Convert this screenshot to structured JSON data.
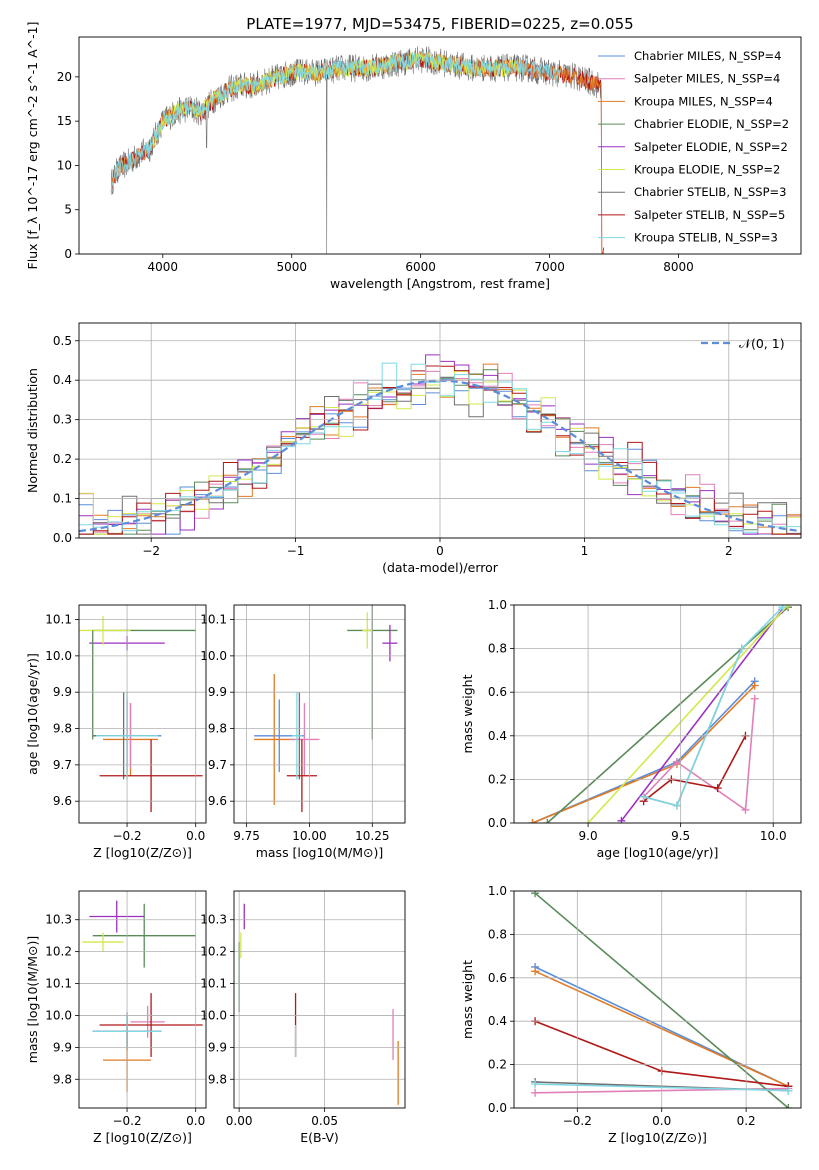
{
  "figure": {
    "title": "PLATE=1977, MJD=53475, FIBERID=0225, z=0.055"
  },
  "colors": {
    "Chabrier MILES": "#5b8ddb",
    "Salpeter MILES": "#e07fb8",
    "Kroupa MILES": "#e07b24",
    "Chabrier ELODIE": "#5a8a5a",
    "Salpeter ELODIE": "#9b30c0",
    "Kroupa ELODIE": "#d4e84a",
    "Chabrier STELIB": "#707070",
    "Salpeter STELIB": "#b01818",
    "Kroupa STELIB": "#7fd8e4",
    "normal": "#5b8ddb"
  },
  "chart_data": [
    {
      "id": "spectrum",
      "type": "line",
      "title": "PLATE=1977, MJD=53475, FIBERID=0225, z=0.055",
      "xlabel": "wavelength [Angstrom, rest frame]",
      "ylabel": "Flux [f_λ 10^-17 erg cm^-2 s^-1 A^-1]",
      "xlim": [
        3350,
        8950
      ],
      "ylim": [
        0,
        24.5
      ],
      "xticks": [
        4000,
        5000,
        6000,
        7000,
        8000
      ],
      "yticks": [
        0,
        5,
        10,
        15,
        20
      ],
      "grid": false,
      "legend_position": "top-right",
      "legend": [
        "Chabrier MILES, N_SSP=4",
        "Salpeter MILES, N_SSP=4",
        "Kroupa MILES, N_SSP=4",
        "Chabrier ELODIE, N_SSP=2",
        "Salpeter ELODIE, N_SSP=2",
        "Kroupa ELODIE, N_SSP=2",
        "Chabrier STELIB, N_SSP=3",
        "Salpeter STELIB, N_SSP=5",
        "Kroupa STELIB, N_SSP=3"
      ],
      "continuum": {
        "x": [
          3600,
          3650,
          3700,
          3800,
          3900,
          4000,
          4100,
          4200,
          4300,
          4400,
          4500,
          4600,
          4700,
          4800,
          4900,
          5000,
          5200,
          5400,
          5600,
          5800,
          6000,
          6200,
          6400,
          6600,
          6800,
          7000,
          7200,
          7400
        ],
        "y": [
          8,
          9.5,
          10,
          11,
          12,
          15,
          16,
          16.5,
          16,
          17.5,
          18.5,
          19,
          19,
          19.5,
          20,
          20.5,
          20.5,
          21,
          21,
          21.5,
          22,
          21.5,
          21,
          21,
          21,
          20.5,
          20,
          19
        ]
      }
    },
    {
      "id": "residuals",
      "type": "line",
      "xlabel": "(data-model)/error",
      "ylabel": "Normed distribution",
      "xlim": [
        -2.5,
        2.5
      ],
      "ylim": [
        0,
        0.545
      ],
      "xticks": [
        -2,
        -1,
        0,
        1,
        2
      ],
      "yticks": [
        0,
        0.1,
        0.2,
        0.3,
        0.4,
        0.5
      ],
      "grid": true,
      "legend_position": "top-right",
      "legend": [
        "N(0,1)"
      ],
      "histogram_bins": [
        -2.5,
        2.5,
        0.1
      ]
    },
    {
      "id": "age-vs-Z",
      "type": "scatter",
      "xlabel": "Z [log10(Z/Z⊙)]",
      "ylabel": "age [log10(age/yr)]",
      "xlim": [
        -0.34,
        0.03
      ],
      "ylim": [
        9.54,
        10.14
      ],
      "xticks": [
        -0.2,
        0.0
      ],
      "yticks": [
        9.6,
        9.7,
        9.8,
        9.9,
        10.0,
        10.1
      ],
      "grid": true,
      "points": [
        {
          "model": "Chabrier MILES",
          "x": -0.2,
          "y": 9.78,
          "xerr": 0.1,
          "yerr": 0.1
        },
        {
          "model": "Kroupa MILES",
          "x": -0.19,
          "y": 9.77,
          "xerr": 0.08,
          "yerr": 0.1
        },
        {
          "model": "Salpeter MILES",
          "x": -0.19,
          "y": 9.78,
          "xerr": 0.06,
          "yerr": 0.09
        },
        {
          "model": "Chabrier ELODIE",
          "x": -0.15,
          "y": 10.07,
          "xerr": 0.15,
          "yerr": 0.0
        },
        {
          "model": "Salpeter ELODIE",
          "x": -0.2,
          "y": 10.035,
          "xerr": 0.11,
          "yerr": 0.02
        },
        {
          "model": "Kroupa ELODIE",
          "x": -0.27,
          "y": 10.07,
          "xerr": 0.08,
          "yerr": 0.04
        },
        {
          "model": "Chabrier STELIB",
          "x": -0.21,
          "y": 9.78,
          "xerr": 0.09,
          "yerr": 0.12
        },
        {
          "model": "Salpeter STELIB",
          "x": -0.13,
          "y": 9.67,
          "xerr": 0.15,
          "yerr": 0.1
        },
        {
          "model": "Kroupa STELIB",
          "x": -0.2,
          "y": 9.78,
          "xerr": 0.09,
          "yerr": 0.12
        },
        {
          "model": "Chabrier ELODIE",
          "x": -0.3,
          "y": 9.92,
          "xerr": 0.0,
          "yerr": 0.15
        }
      ]
    },
    {
      "id": "age-vs-mass",
      "type": "scatter",
      "xlabel": "mass [log10(M/M⊙)]",
      "ylabel": "",
      "xlim": [
        9.7,
        10.38
      ],
      "ylim": [
        9.54,
        10.14
      ],
      "xticks": [
        9.75,
        10.0,
        10.25
      ],
      "yticks": [
        9.6,
        9.7,
        9.8,
        9.9,
        10.0,
        10.1
      ],
      "grid": true,
      "points": [
        {
          "model": "Chabrier MILES",
          "x": 9.88,
          "y": 9.78,
          "xerr": 0.1,
          "yerr": 0.1
        },
        {
          "model": "Kroupa MILES",
          "x": 9.86,
          "y": 9.77,
          "xerr": 0.08,
          "yerr": 0.18
        },
        {
          "model": "Salpeter MILES",
          "x": 9.98,
          "y": 9.77,
          "xerr": 0.06,
          "yerr": 0.1
        },
        {
          "model": "Chabrier ELODIE",
          "x": 10.25,
          "y": 10.07,
          "xerr": 0.1,
          "yerr": 0.3
        },
        {
          "model": "Salpeter ELODIE",
          "x": 10.32,
          "y": 10.035,
          "xerr": 0.03,
          "yerr": 0.05
        },
        {
          "model": "Kroupa ELODIE",
          "x": 10.23,
          "y": 10.07,
          "xerr": 0.02,
          "yerr": 0.05
        },
        {
          "model": "Chabrier STELIB",
          "x": 9.96,
          "y": 9.78,
          "xerr": 0.01,
          "yerr": 0.12
        },
        {
          "model": "Salpeter STELIB",
          "x": 9.97,
          "y": 9.67,
          "xerr": 0.06,
          "yerr": 0.1
        },
        {
          "model": "Kroupa STELIB",
          "x": 9.95,
          "y": 9.78,
          "xerr": 0.02,
          "yerr": 0.12
        }
      ]
    },
    {
      "id": "mass-weight-vs-age",
      "type": "line",
      "xlabel": "age [log10(age/yr)]",
      "ylabel": "mass weight",
      "xlim": [
        8.6,
        10.15
      ],
      "ylim": [
        0,
        1.0
      ],
      "xticks": [
        9.0,
        9.5,
        10.0
      ],
      "yticks": [
        0,
        0.2,
        0.4,
        0.6,
        0.8,
        1.0
      ],
      "grid": true,
      "series": [
        {
          "model": "Chabrier MILES",
          "x": [
            8.7,
            9.48,
            9.9
          ],
          "y": [
            0.0,
            0.28,
            0.65
          ]
        },
        {
          "model": "Kroupa MILES",
          "x": [
            8.7,
            9.48,
            9.9
          ],
          "y": [
            0.0,
            0.27,
            0.63
          ]
        },
        {
          "model": "Salpeter MILES",
          "x": [
            9.3,
            9.48,
            9.85,
            9.9
          ],
          "y": [
            0.12,
            0.28,
            0.06,
            0.57
          ]
        },
        {
          "model": "Chabrier ELODIE",
          "x": [
            8.78,
            10.08
          ],
          "y": [
            0.0,
            0.99
          ]
        },
        {
          "model": "Salpeter ELODIE",
          "x": [
            9.18,
            10.05
          ],
          "y": [
            0.01,
            0.98
          ]
        },
        {
          "model": "Kroupa ELODIE",
          "x": [
            9.0,
            10.08
          ],
          "y": [
            0.0,
            1.0
          ]
        },
        {
          "model": "Chabrier STELIB",
          "x": [
            9.3,
            9.48,
            9.83
          ],
          "y": [
            0.12,
            0.08,
            0.8
          ]
        },
        {
          "model": "Salpeter STELIB",
          "x": [
            9.3,
            9.45,
            9.7,
            9.85
          ],
          "y": [
            0.1,
            0.2,
            0.16,
            0.4
          ]
        },
        {
          "model": "Kroupa STELIB",
          "x": [
            9.3,
            9.48,
            9.83,
            10.05
          ],
          "y": [
            0.12,
            0.08,
            0.8,
            0.99
          ]
        }
      ]
    },
    {
      "id": "mass-vs-Z",
      "type": "scatter",
      "xlabel": "Z [log10(Z/Z⊙)]",
      "ylabel": "mass [log10(M/M⊙)]",
      "xlim": [
        -0.34,
        0.03
      ],
      "ylim": [
        9.71,
        10.39
      ],
      "xticks": [
        -0.2,
        0.0
      ],
      "yticks": [
        9.8,
        9.9,
        10.0,
        10.1,
        10.2,
        10.3
      ],
      "grid": true,
      "points": [
        {
          "model": "Chabrier MILES",
          "x": -0.2,
          "y": 9.95,
          "xerr": 0.1,
          "yerr": 0.06
        },
        {
          "model": "Kroupa MILES",
          "x": -0.2,
          "y": 9.86,
          "xerr": 0.07,
          "yerr": 0.1
        },
        {
          "model": "Salpeter MILES",
          "x": -0.14,
          "y": 9.98,
          "xerr": 0.05,
          "yerr": 0.05
        },
        {
          "model": "Chabrier ELODIE",
          "x": -0.15,
          "y": 10.25,
          "xerr": 0.15,
          "yerr": 0.1
        },
        {
          "model": "Salpeter ELODIE",
          "x": -0.23,
          "y": 10.31,
          "xerr": 0.08,
          "yerr": 0.05
        },
        {
          "model": "Kroupa ELODIE",
          "x": -0.27,
          "y": 10.23,
          "xerr": 0.06,
          "yerr": 0.03
        },
        {
          "model": "Chabrier STELIB",
          "x": -0.2,
          "y": 9.95,
          "xerr": 0.1,
          "yerr": 0.05
        },
        {
          "model": "Salpeter STELIB",
          "x": -0.13,
          "y": 9.97,
          "xerr": 0.15,
          "yerr": 0.1
        },
        {
          "model": "Kroupa STELIB",
          "x": -0.2,
          "y": 9.95,
          "xerr": 0.1,
          "yerr": 0.05
        }
      ]
    },
    {
      "id": "mass-vs-ebv",
      "type": "scatter",
      "xlabel": "E(B-V)",
      "ylabel": "",
      "xlim": [
        -0.003,
        0.097
      ],
      "ylim": [
        9.71,
        10.39
      ],
      "xticks": [
        0.0,
        0.05
      ],
      "yticks": [
        9.8,
        9.9,
        10.0,
        10.1,
        10.2,
        10.3
      ],
      "grid": true,
      "points": [
        {
          "model": "Chabrier ELODIE",
          "x": 0.0,
          "y": 10.12,
          "xerr": 0,
          "yerr": 0.11
        },
        {
          "model": "Kroupa ELODIE",
          "x": 0.001,
          "y": 10.22,
          "xerr": 0,
          "yerr": 0.04
        },
        {
          "model": "Salpeter ELODIE",
          "x": 0.003,
          "y": 10.31,
          "xerr": 0,
          "yerr": 0.04
        },
        {
          "model": "Salpeter STELIB",
          "x": 0.033,
          "y": 9.97,
          "xerr": 0,
          "yerr": 0.1
        },
        {
          "model": "Kroupa STELIB",
          "x": 0.033,
          "y": 9.92,
          "xerr": 0,
          "yerr": 0.05
        },
        {
          "model": "Salpeter MILES",
          "x": 0.09,
          "y": 9.94,
          "xerr": 0,
          "yerr": 0.08
        },
        {
          "model": "Kroupa MILES",
          "x": 0.093,
          "y": 9.82,
          "xerr": 0,
          "yerr": 0.1
        }
      ]
    },
    {
      "id": "mass-weight-vs-Z",
      "type": "line",
      "xlabel": "Z [log10(Z/Z⊙)]",
      "ylabel": "mass weight",
      "xlim": [
        -0.35,
        0.33
      ],
      "ylim": [
        0,
        1.0
      ],
      "xticks": [
        -0.2,
        0.0,
        0.2
      ],
      "yticks": [
        0,
        0.2,
        0.4,
        0.6,
        0.8,
        1.0
      ],
      "grid": true,
      "series": [
        {
          "model": "Chabrier MILES",
          "x": [
            -0.3,
            0.3
          ],
          "y": [
            0.65,
            0.1
          ]
        },
        {
          "model": "Kroupa MILES",
          "x": [
            -0.3,
            0.3
          ],
          "y": [
            0.63,
            0.1
          ]
        },
        {
          "model": "Salpeter MILES",
          "x": [
            -0.3,
            0.3
          ],
          "y": [
            0.07,
            0.09
          ]
        },
        {
          "model": "Chabrier ELODIE",
          "x": [
            -0.3,
            0.3
          ],
          "y": [
            0.99,
            0.0
          ]
        },
        {
          "model": "Salpeter STELIB",
          "x": [
            -0.3,
            0.0,
            0.3
          ],
          "y": [
            0.4,
            0.17,
            0.1
          ]
        },
        {
          "model": "Chabrier STELIB",
          "x": [
            -0.3,
            0.3
          ],
          "y": [
            0.12,
            0.08
          ]
        },
        {
          "model": "Kroupa STELIB",
          "x": [
            -0.3,
            0.3
          ],
          "y": [
            0.11,
            0.08
          ]
        }
      ]
    }
  ]
}
